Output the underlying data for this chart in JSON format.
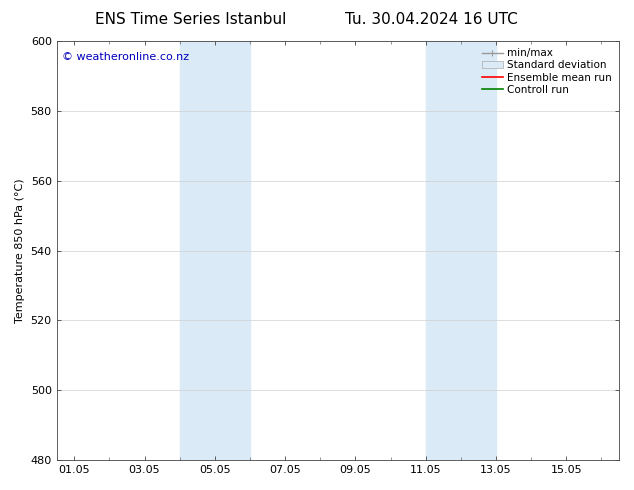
{
  "title_left": "ENS Time Series Istanbul",
  "title_right": "Tu. 30.04.2024 16 UTC",
  "ylabel": "Temperature 850 hPa (°C)",
  "ylim": [
    480,
    600
  ],
  "yticks": [
    480,
    500,
    520,
    540,
    560,
    580,
    600
  ],
  "xtick_labels": [
    "01.05",
    "03.05",
    "05.05",
    "07.05",
    "09.05",
    "11.05",
    "13.05",
    "15.05"
  ],
  "xtick_positions": [
    0,
    2,
    4,
    6,
    8,
    10,
    12,
    14
  ],
  "xlim": [
    -0.5,
    15.5
  ],
  "shaded_regions": [
    {
      "x_start": 3.0,
      "x_end": 5.0,
      "color": "#daeaf7"
    },
    {
      "x_start": 10.0,
      "x_end": 12.0,
      "color": "#daeaf7"
    }
  ],
  "watermark_text": "© weatheronline.co.nz",
  "watermark_color": "#0000bb",
  "legend_entries": [
    {
      "label": "min/max",
      "color": "#aaaaaa",
      "style": "minmax"
    },
    {
      "label": "Standard deviation",
      "color": "#daeaf7",
      "style": "stddev"
    },
    {
      "label": "Ensemble mean run",
      "color": "red",
      "style": "line"
    },
    {
      "label": "Controll run",
      "color": "green",
      "style": "line"
    }
  ],
  "bg_color": "#ffffff",
  "grid_color": "#d0d0d0",
  "font_size_title": 11,
  "font_size_labels": 8,
  "font_size_ticks": 8,
  "font_size_watermark": 8,
  "font_size_legend": 7.5
}
